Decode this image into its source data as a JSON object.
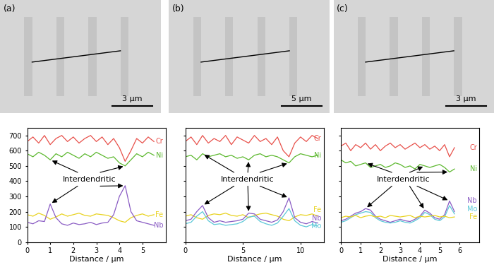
{
  "images": [
    {
      "label": "(a)",
      "scale_bar": "3 µm"
    },
    {
      "label": "(b)",
      "scale_bar": "5 µm"
    },
    {
      "label": "(c)",
      "scale_bar": "3 µm"
    }
  ],
  "chart_data": [
    {
      "type": "line",
      "xlabel": "Distance / µm",
      "x": [
        0,
        0.25,
        0.5,
        0.75,
        1.0,
        1.25,
        1.5,
        1.75,
        2.0,
        2.25,
        2.5,
        2.75,
        3.0,
        3.25,
        3.5,
        3.75,
        4.0,
        4.25,
        4.5,
        4.75,
        5.0,
        5.25,
        5.5
      ],
      "series": [
        {
          "name": "Cr",
          "color": "#e8504a",
          "values": [
            660,
            690,
            650,
            700,
            640,
            680,
            700,
            660,
            690,
            650,
            680,
            700,
            660,
            690,
            640,
            680,
            620,
            530,
            600,
            680,
            650,
            690,
            660
          ]
        },
        {
          "name": "Ni",
          "color": "#5cb82e",
          "values": [
            580,
            560,
            590,
            570,
            540,
            580,
            560,
            590,
            570,
            550,
            580,
            560,
            590,
            570,
            550,
            560,
            520,
            500,
            540,
            580,
            560,
            590,
            570
          ]
        },
        {
          "name": "Fe",
          "color": "#e8d21e",
          "values": [
            180,
            170,
            190,
            175,
            150,
            165,
            185,
            170,
            180,
            190,
            175,
            170,
            185,
            180,
            175,
            160,
            140,
            130,
            160,
            175,
            185,
            170,
            180
          ]
        },
        {
          "name": "Nb",
          "color": "#8a5cc4",
          "values": [
            130,
            120,
            140,
            135,
            250,
            160,
            120,
            110,
            125,
            115,
            120,
            130,
            115,
            125,
            130,
            180,
            300,
            370,
            200,
            140,
            130,
            120,
            110
          ]
        }
      ],
      "annotations": [
        {
          "text": "Interdendritic",
          "x": [
            1.0,
            4.25
          ]
        }
      ],
      "xlim": [
        0,
        6
      ],
      "xticks": [
        0,
        1,
        2,
        3,
        4,
        5
      ],
      "ylim": [
        0,
        750
      ],
      "yticks": [
        0,
        100,
        200,
        300,
        400,
        500,
        600,
        700
      ]
    },
    {
      "type": "line",
      "xlabel": "Distance / µm",
      "x": [
        0,
        0.5,
        1.0,
        1.5,
        2.0,
        2.5,
        3.0,
        3.5,
        4.0,
        4.5,
        5.0,
        5.5,
        6.0,
        6.5,
        7.0,
        7.5,
        8.0,
        8.5,
        9.0,
        9.5,
        10.0,
        10.5,
        11.0,
        11.5
      ],
      "series": [
        {
          "name": "Cr",
          "color": "#e8504a",
          "values": [
            660,
            690,
            640,
            700,
            650,
            680,
            660,
            700,
            640,
            690,
            670,
            650,
            700,
            660,
            680,
            640,
            690,
            600,
            560,
            650,
            690,
            660,
            700,
            680
          ]
        },
        {
          "name": "Ni",
          "color": "#5cb82e",
          "values": [
            560,
            570,
            540,
            580,
            560,
            570,
            580,
            560,
            570,
            550,
            560,
            540,
            570,
            580,
            560,
            570,
            560,
            540,
            520,
            560,
            580,
            570,
            560,
            570
          ]
        },
        {
          "name": "Fe",
          "color": "#e8d21e",
          "values": [
            170,
            180,
            160,
            150,
            175,
            185,
            180,
            190,
            175,
            170,
            180,
            160,
            175,
            185,
            190,
            180,
            170,
            150,
            140,
            165,
            180,
            175,
            185,
            170
          ]
        },
        {
          "name": "Nb",
          "color": "#8a5cc4",
          "values": [
            140,
            150,
            200,
            240,
            160,
            130,
            140,
            130,
            135,
            140,
            150,
            190,
            185,
            150,
            140,
            130,
            145,
            200,
            290,
            160,
            130,
            120,
            135,
            125
          ]
        },
        {
          "name": "Mo",
          "color": "#5cc8d8",
          "values": [
            120,
            130,
            170,
            200,
            140,
            115,
            120,
            110,
            115,
            120,
            135,
            165,
            170,
            135,
            120,
            110,
            125,
            170,
            220,
            140,
            110,
            100,
            115,
            105
          ]
        }
      ],
      "annotations": [
        {
          "text": "Interdendritic",
          "x": [
            1.5,
            5.5,
            9.0
          ]
        }
      ],
      "xlim": [
        0,
        12
      ],
      "xticks": [
        0,
        5,
        10
      ],
      "ylim": [
        0,
        750
      ],
      "yticks": [
        0,
        100,
        200,
        300,
        400,
        500,
        600,
        700
      ],
      "tick_labels": "x"
    },
    {
      "type": "line",
      "xlabel": "Distance / µm",
      "x": [
        0,
        0.25,
        0.5,
        0.75,
        1.0,
        1.25,
        1.5,
        1.75,
        2.0,
        2.25,
        2.5,
        2.75,
        3.0,
        3.25,
        3.5,
        3.75,
        4.0,
        4.25,
        4.5,
        4.75,
        5.0,
        5.25,
        5.5,
        5.75
      ],
      "series": [
        {
          "name": "Cr",
          "color": "#e8504a",
          "values": [
            630,
            650,
            600,
            640,
            620,
            650,
            610,
            640,
            600,
            630,
            650,
            620,
            640,
            610,
            630,
            650,
            620,
            640,
            610,
            630,
            600,
            640,
            560,
            620
          ]
        },
        {
          "name": "Ni",
          "color": "#5cb82e",
          "values": [
            540,
            520,
            530,
            500,
            510,
            520,
            490,
            500,
            510,
            490,
            500,
            520,
            510,
            490,
            500,
            480,
            510,
            500,
            490,
            500,
            510,
            490,
            460,
            480
          ]
        },
        {
          "name": "Nb",
          "color": "#8a5cc4",
          "values": [
            140,
            150,
            170,
            190,
            200,
            220,
            210,
            170,
            150,
            140,
            130,
            140,
            150,
            140,
            135,
            150,
            170,
            210,
            190,
            160,
            150,
            180,
            270,
            200
          ]
        },
        {
          "name": "Mo",
          "color": "#5cc8d8",
          "values": [
            130,
            140,
            160,
            180,
            190,
            200,
            195,
            160,
            140,
            130,
            125,
            130,
            140,
            130,
            125,
            140,
            160,
            195,
            180,
            150,
            140,
            165,
            240,
            185
          ]
        },
        {
          "name": "Fe",
          "color": "#e8d21e",
          "values": [
            160,
            170,
            165,
            175,
            160,
            170,
            175,
            165,
            170,
            160,
            175,
            170,
            165,
            170,
            175,
            160,
            170,
            165,
            170,
            175,
            165,
            170,
            160,
            165
          ]
        }
      ],
      "annotations": [
        {
          "text": "Interdendritic",
          "x": [
            1.25,
            4.25,
            5.5
          ]
        }
      ],
      "xlim": [
        0,
        7
      ],
      "xticks": [
        0,
        1,
        2,
        3,
        4,
        5,
        6
      ],
      "ylim": [
        0,
        750
      ],
      "yticks": [
        0,
        100,
        200,
        300,
        400,
        500,
        600,
        700
      ],
      "tick_labels": "x"
    }
  ]
}
